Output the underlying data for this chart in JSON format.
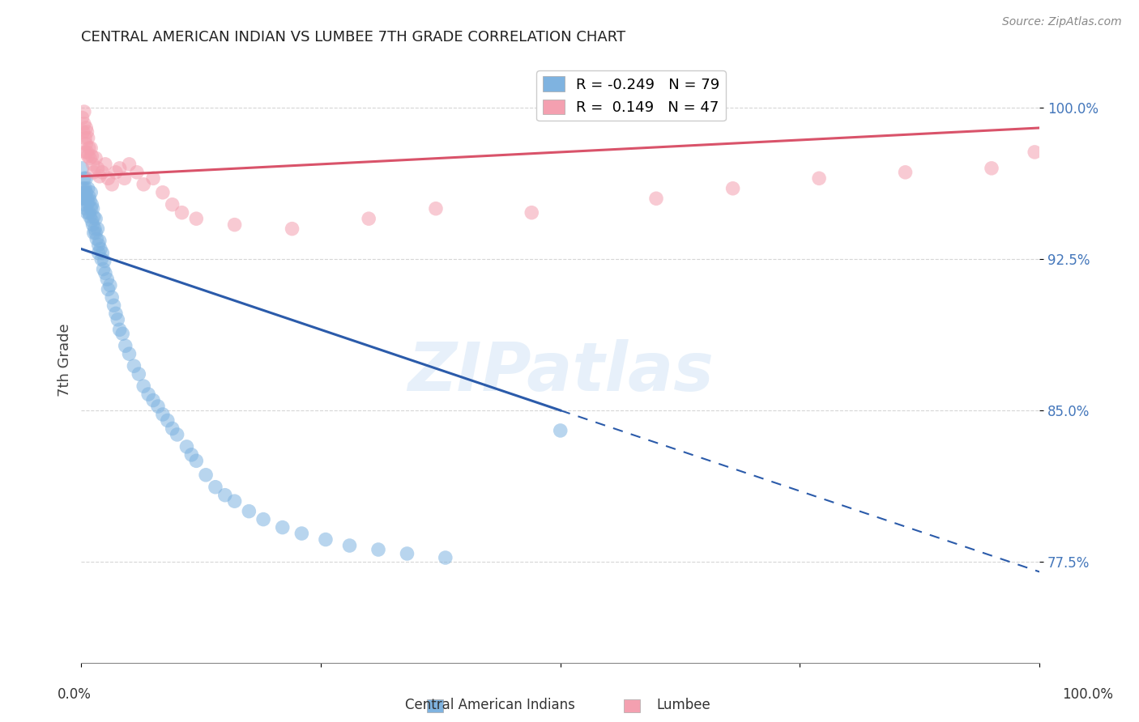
{
  "title": "CENTRAL AMERICAN INDIAN VS LUMBEE 7TH GRADE CORRELATION CHART",
  "source": "Source: ZipAtlas.com",
  "ylabel": "7th Grade",
  "legend_blue_R": "-0.249",
  "legend_blue_N": "79",
  "legend_pink_R": "0.149",
  "legend_pink_N": "47",
  "xlim": [
    0.0,
    1.0
  ],
  "ylim": [
    0.725,
    1.025
  ],
  "yticks": [
    0.775,
    0.85,
    0.925,
    1.0
  ],
  "ytick_labels": [
    "77.5%",
    "85.0%",
    "92.5%",
    "100.0%"
  ],
  "watermark": "ZIPatlas",
  "blue_color": "#7FB3E0",
  "pink_color": "#F4A0B0",
  "blue_line_color": "#2B5BAA",
  "pink_line_color": "#D9536A",
  "blue_line_solid_end": 0.5,
  "blue_line_x0": 0.0,
  "blue_line_y0": 0.93,
  "blue_line_x1": 1.0,
  "blue_line_y1": 0.77,
  "pink_line_x0": 0.0,
  "pink_line_y0": 0.966,
  "pink_line_x1": 1.0,
  "pink_line_y1": 0.99,
  "blue_x": [
    0.001,
    0.002,
    0.002,
    0.003,
    0.003,
    0.003,
    0.004,
    0.004,
    0.005,
    0.005,
    0.005,
    0.006,
    0.006,
    0.007,
    0.007,
    0.008,
    0.008,
    0.009,
    0.009,
    0.01,
    0.01,
    0.011,
    0.011,
    0.012,
    0.012,
    0.013,
    0.013,
    0.014,
    0.015,
    0.015,
    0.016,
    0.017,
    0.018,
    0.018,
    0.019,
    0.02,
    0.021,
    0.022,
    0.023,
    0.024,
    0.025,
    0.027,
    0.028,
    0.03,
    0.032,
    0.034,
    0.036,
    0.038,
    0.04,
    0.043,
    0.046,
    0.05,
    0.055,
    0.06,
    0.065,
    0.07,
    0.075,
    0.08,
    0.085,
    0.09,
    0.095,
    0.1,
    0.11,
    0.115,
    0.12,
    0.13,
    0.14,
    0.15,
    0.16,
    0.175,
    0.19,
    0.21,
    0.23,
    0.255,
    0.28,
    0.31,
    0.34,
    0.38,
    0.5
  ],
  "blue_y": [
    0.97,
    0.96,
    0.955,
    0.965,
    0.958,
    0.952,
    0.96,
    0.955,
    0.965,
    0.958,
    0.95,
    0.955,
    0.948,
    0.96,
    0.953,
    0.956,
    0.948,
    0.954,
    0.946,
    0.958,
    0.95,
    0.952,
    0.944,
    0.95,
    0.942,
    0.946,
    0.938,
    0.94,
    0.945,
    0.938,
    0.935,
    0.94,
    0.932,
    0.928,
    0.934,
    0.93,
    0.925,
    0.928,
    0.92,
    0.924,
    0.918,
    0.915,
    0.91,
    0.912,
    0.906,
    0.902,
    0.898,
    0.895,
    0.89,
    0.888,
    0.882,
    0.878,
    0.872,
    0.868,
    0.862,
    0.858,
    0.855,
    0.852,
    0.848,
    0.845,
    0.841,
    0.838,
    0.832,
    0.828,
    0.825,
    0.818,
    0.812,
    0.808,
    0.805,
    0.8,
    0.796,
    0.792,
    0.789,
    0.786,
    0.783,
    0.781,
    0.779,
    0.777,
    0.84
  ],
  "pink_x": [
    0.001,
    0.002,
    0.003,
    0.003,
    0.004,
    0.004,
    0.005,
    0.005,
    0.006,
    0.006,
    0.007,
    0.007,
    0.008,
    0.009,
    0.01,
    0.011,
    0.012,
    0.013,
    0.015,
    0.017,
    0.019,
    0.022,
    0.025,
    0.028,
    0.032,
    0.036,
    0.04,
    0.045,
    0.05,
    0.058,
    0.065,
    0.075,
    0.085,
    0.095,
    0.105,
    0.12,
    0.16,
    0.22,
    0.3,
    0.37,
    0.47,
    0.6,
    0.68,
    0.77,
    0.86,
    0.95,
    0.995
  ],
  "pink_y": [
    0.995,
    0.988,
    0.998,
    0.992,
    0.985,
    0.978,
    0.99,
    0.982,
    0.988,
    0.978,
    0.985,
    0.976,
    0.98,
    0.975,
    0.98,
    0.976,
    0.972,
    0.968,
    0.975,
    0.97,
    0.966,
    0.968,
    0.972,
    0.965,
    0.962,
    0.968,
    0.97,
    0.965,
    0.972,
    0.968,
    0.962,
    0.965,
    0.958,
    0.952,
    0.948,
    0.945,
    0.942,
    0.94,
    0.945,
    0.95,
    0.948,
    0.955,
    0.96,
    0.965,
    0.968,
    0.97,
    0.978
  ]
}
